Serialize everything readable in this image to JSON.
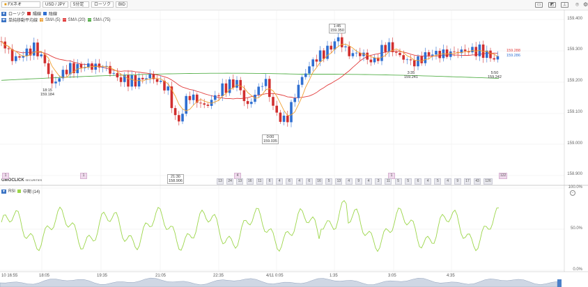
{
  "toolbar": {
    "product": "FXネオ",
    "pair": "USD / JPY",
    "interval": "5分足",
    "chart_type": "ローソク",
    "price_side": "BID",
    "right_icons": [
      "window-icon",
      "chart-icon",
      "pin-icon",
      "camera-icon",
      "gear-icon",
      "expand-icon"
    ]
  },
  "legend": {
    "candle": "ローソク",
    "up": "陽線",
    "down": "陰線",
    "ma_title": "単純移動平均線",
    "sma5": "SMA (5)",
    "sma20": "SMA (20)",
    "sma75": "SMA (75)",
    "rsi_title": "RSI",
    "rsi_series": "中期 (14)"
  },
  "price_axis": [
    "159.400",
    "159.300",
    "159.200",
    "159.100",
    "159.000",
    "158.900"
  ],
  "current_prices": {
    "sma": "159.288",
    "bid": "159.286"
  },
  "annotations": {
    "low_1815": {
      "time": "18:15",
      "price": "159.184"
    },
    "low_2130": {
      "time": "21:30",
      "price": "158.906"
    },
    "low_000": {
      "time": "0:00",
      "price": "159.035"
    },
    "high_145": {
      "time": "1:45",
      "price": "159.350"
    },
    "low_335": {
      "time": "3:35",
      "price": "159.241"
    },
    "low_550": {
      "time": "5:50",
      "price": "159.242"
    }
  },
  "rsi_axis": [
    "100.0%",
    "50.0%",
    "0.0%"
  ],
  "time_axis": [
    "10 16:55",
    "18:05",
    "19:35",
    "21:05",
    "22:35",
    "4/11 0:05",
    "1:35",
    "3:05",
    "4:35"
  ],
  "brand": "GMOCLICK",
  "brand_sub": "SECURITIES",
  "event_badges": [
    "1",
    "1",
    "4",
    "1",
    "122"
  ],
  "count_badges": [
    "13",
    "24",
    "13",
    "16",
    "11",
    "6",
    "4",
    "6",
    "4",
    "6",
    "16",
    "5",
    "13",
    "4",
    "9",
    "4",
    "3",
    "11",
    "5",
    "5",
    "6",
    "4",
    "5",
    "4",
    "9",
    "17",
    "43",
    "126"
  ],
  "colors": {
    "up": "#2f6fd1",
    "down": "#d12f2f",
    "sma5": "#f0a030",
    "sma20": "#e23b3b",
    "sma75": "#55b04a",
    "rsi": "#9cd64a"
  }
}
